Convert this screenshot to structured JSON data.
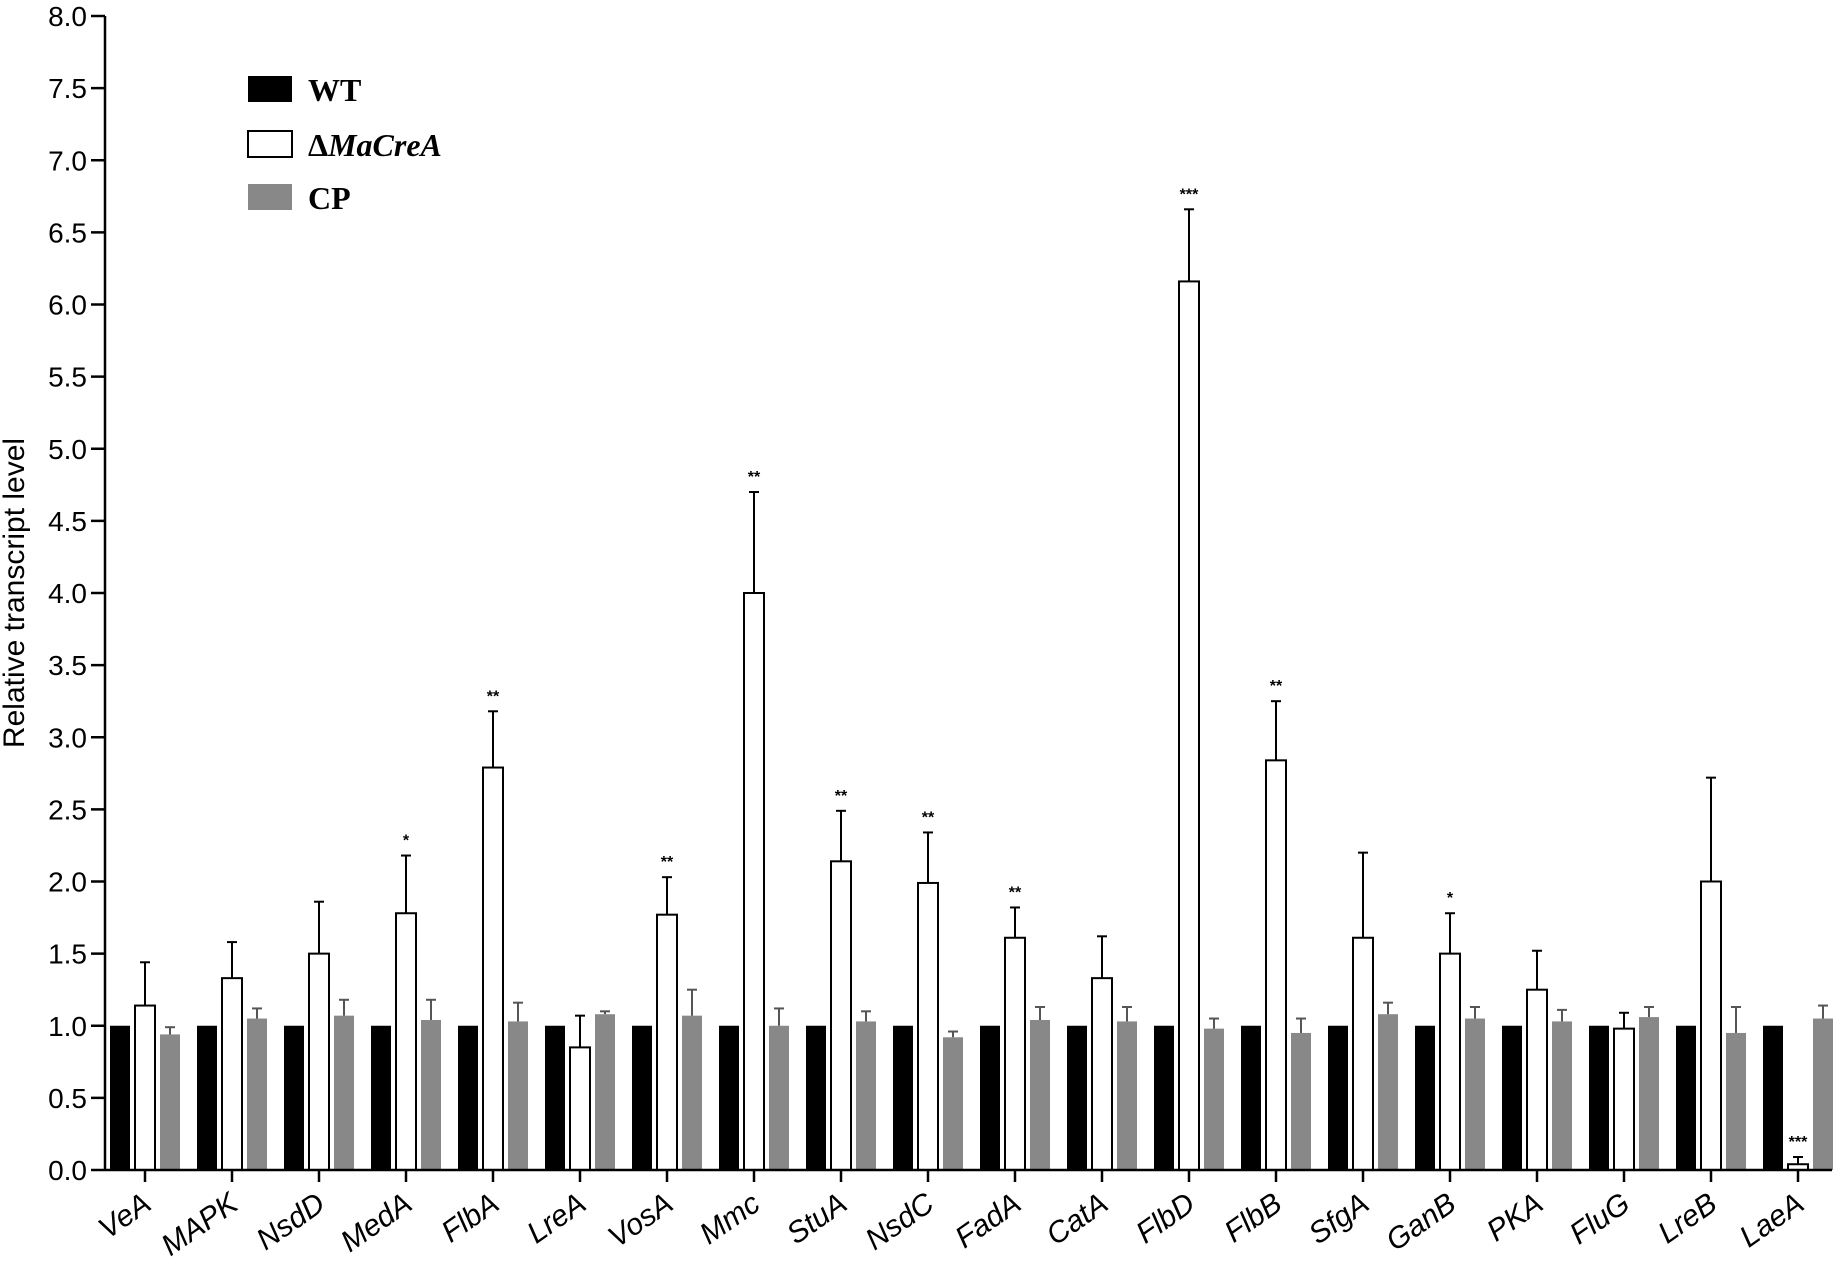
{
  "chart_data": {
    "type": "bar",
    "title": "",
    "xlabel": "",
    "ylabel": "Relative transcript level",
    "ylim": [
      0,
      8
    ],
    "yticks": [
      "0.0",
      "0.5",
      "1.0",
      "1.5",
      "2.0",
      "2.5",
      "3.0",
      "3.5",
      "4.0",
      "4.5",
      "5.0",
      "5.5",
      "6.0",
      "6.5",
      "7.0",
      "7.5",
      "8.0"
    ],
    "grid": false,
    "legend_position": "top-left",
    "categories": [
      "VeA",
      "MAPK",
      "NsdD",
      "MedA",
      "FlbA",
      "LreA",
      "VosA",
      "Mmc",
      "StuA",
      "NsdC",
      "FadA",
      "CatA",
      "FlbD",
      "FlbB",
      "SfgA",
      "GanB",
      "PKA",
      "FluG",
      "LreB",
      "LaeA"
    ],
    "series": [
      {
        "name": "WT",
        "style": "filled-black",
        "color": "#000000",
        "values": [
          1.0,
          1.0,
          1.0,
          1.0,
          1.0,
          1.0,
          1.0,
          1.0,
          1.0,
          1.0,
          1.0,
          1.0,
          1.0,
          1.0,
          1.0,
          1.0,
          1.0,
          1.0,
          1.0,
          1.0
        ],
        "errors": [
          0,
          0,
          0,
          0,
          0,
          0,
          0,
          0,
          0,
          0,
          0,
          0,
          0,
          0,
          0,
          0,
          0,
          0,
          0,
          0
        ]
      },
      {
        "name": "MaCreA",
        "name_prefix": "Δ",
        "style": "open",
        "color": "#ffffff",
        "values": [
          1.14,
          1.33,
          1.5,
          1.78,
          2.79,
          0.85,
          1.77,
          4.0,
          2.14,
          1.99,
          1.61,
          1.33,
          6.16,
          2.84,
          1.61,
          1.5,
          1.25,
          0.98,
          2.0,
          0.04
        ],
        "errors": [
          0.3,
          0.25,
          0.36,
          0.4,
          0.39,
          0.22,
          0.26,
          0.7,
          0.35,
          0.35,
          0.21,
          0.29,
          0.5,
          0.41,
          0.59,
          0.28,
          0.27,
          0.11,
          0.72,
          0.05
        ],
        "significance": [
          "",
          "",
          "",
          "*",
          "**",
          "",
          "**",
          "**",
          "**",
          "**",
          "**",
          "",
          "***",
          "**",
          "",
          "*",
          "",
          "",
          "",
          "***"
        ]
      },
      {
        "name": "CP",
        "style": "filled-gray",
        "color": "#888888",
        "values": [
          0.94,
          1.05,
          1.07,
          1.04,
          1.03,
          1.08,
          1.07,
          1.0,
          1.03,
          0.92,
          1.04,
          1.03,
          0.98,
          0.95,
          1.08,
          1.05,
          1.03,
          1.06,
          0.95,
          1.05
        ],
        "errors": [
          0.05,
          0.07,
          0.11,
          0.14,
          0.13,
          0.02,
          0.18,
          0.12,
          0.07,
          0.04,
          0.09,
          0.1,
          0.07,
          0.1,
          0.08,
          0.08,
          0.08,
          0.07,
          0.18,
          0.09
        ]
      }
    ]
  }
}
